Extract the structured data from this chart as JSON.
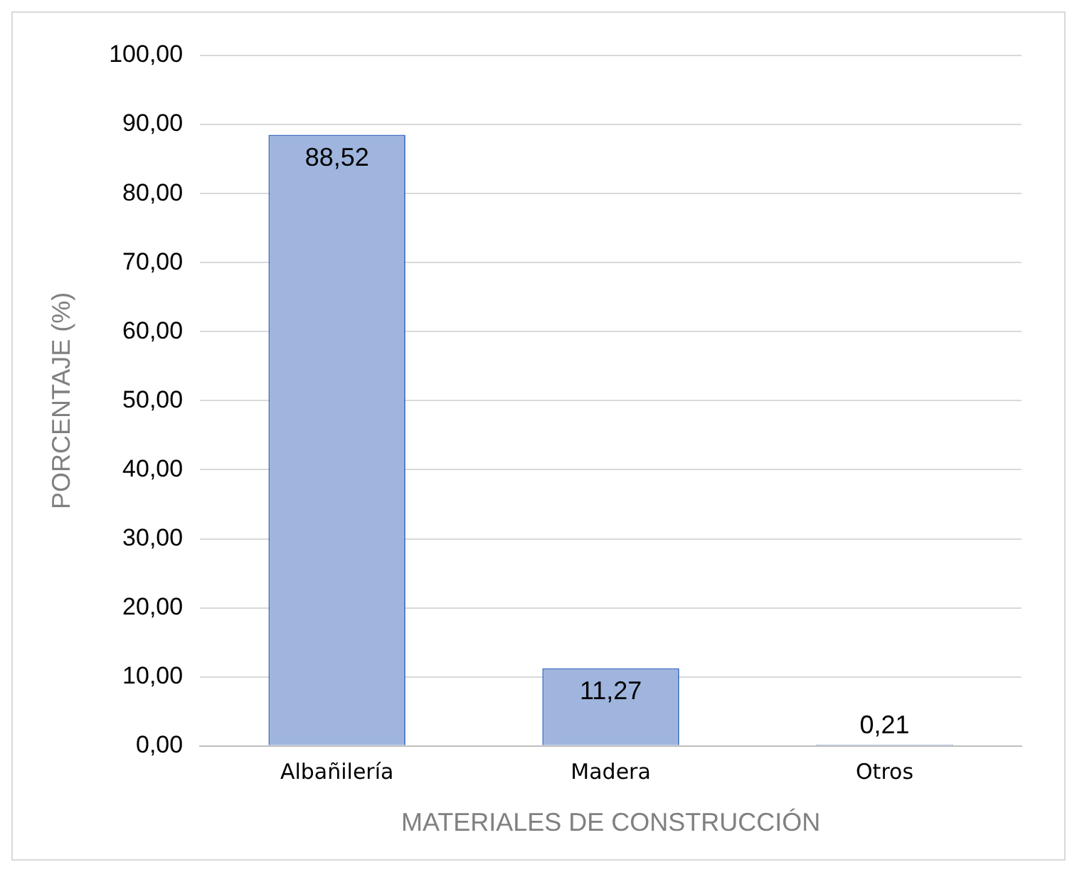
{
  "chart_data": {
    "type": "bar",
    "xlabel": "MATERIALES DE CONSTRUCCIÓN",
    "ylabel": "PORCENTAJE (%)",
    "categories": [
      "Albañilería",
      "Madera",
      "Otros"
    ],
    "values": [
      88.52,
      11.27,
      0.21
    ],
    "value_labels": [
      "88,52",
      "11,27",
      "0,21"
    ],
    "color": "#9fb5de",
    "ylim": [
      0,
      100
    ],
    "yticks": [
      {
        "value": 0,
        "label": "0,00"
      },
      {
        "value": 10,
        "label": "10,00"
      },
      {
        "value": 20,
        "label": "20,00"
      },
      {
        "value": 30,
        "label": "30,00"
      },
      {
        "value": 40,
        "label": "40,00"
      },
      {
        "value": 50,
        "label": "50,00"
      },
      {
        "value": 60,
        "label": "60,00"
      },
      {
        "value": 70,
        "label": "70,00"
      },
      {
        "value": 80,
        "label": "80,00"
      },
      {
        "value": 90,
        "label": "90,00"
      },
      {
        "value": 100,
        "label": "100,00"
      }
    ],
    "grid": "y",
    "legend": false
  }
}
